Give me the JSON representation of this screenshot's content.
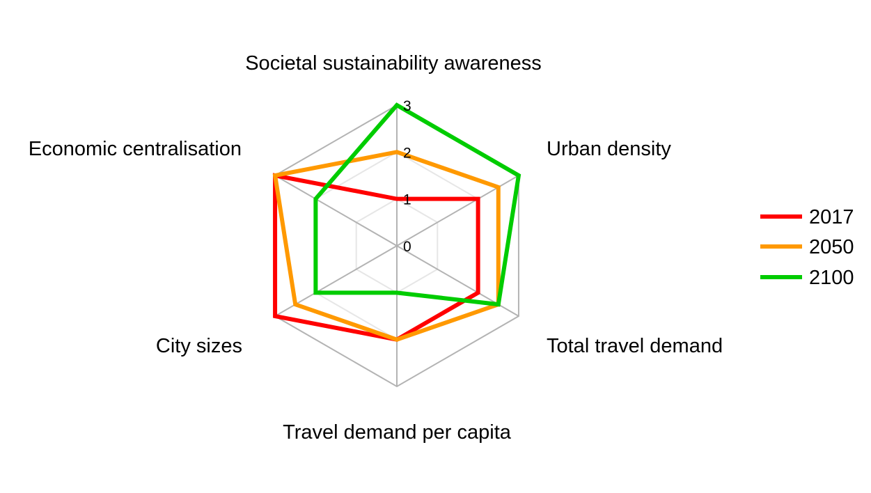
{
  "chart_data": {
    "type": "radar",
    "axes": [
      "Societal sustainability awareness",
      "Urban density",
      "Total travel demand",
      "Travel demand per capita",
      "City sizes",
      "Economic centralisation"
    ],
    "scale": {
      "min": 0,
      "max": 3,
      "ticks": [
        "0",
        "1",
        "2",
        "3"
      ]
    },
    "series": [
      {
        "name": "2017",
        "color": "#ff0000",
        "values": [
          1,
          2,
          2,
          2,
          3,
          3
        ]
      },
      {
        "name": "2050",
        "color": "#ff9900",
        "values": [
          2,
          2.5,
          2.5,
          2,
          2.5,
          3
        ]
      },
      {
        "name": "2100",
        "color": "#00cc00",
        "values": [
          3,
          3,
          2.5,
          1,
          2,
          2
        ]
      }
    ],
    "grid": true,
    "legend": "right",
    "gridline_colors": {
      "outer": "#b3b3b3",
      "inner": "#e6e6e6"
    }
  }
}
